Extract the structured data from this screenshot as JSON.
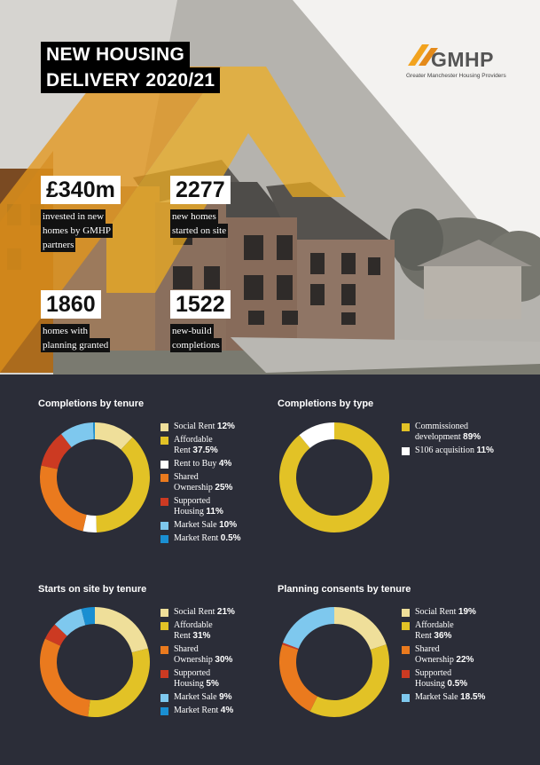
{
  "header": {
    "title_line1": "NEW HOUSING",
    "title_line2": "DELIVERY 2020/21",
    "logo_text": "GMHP",
    "logo_subtitle": "Greater Manchester Housing Providers"
  },
  "stats": [
    {
      "value": "£340m",
      "desc": [
        "invested in new",
        "homes by GMHP",
        "partners"
      ]
    },
    {
      "value": "2277",
      "desc": [
        "new homes",
        "started on site"
      ]
    },
    {
      "value": "1860",
      "desc": [
        "homes with",
        "planning granted"
      ]
    },
    {
      "value": "1522",
      "desc": [
        "new-build",
        "completions"
      ]
    }
  ],
  "colors": {
    "social_rent": "#efdf9a",
    "affordable_rent": "#e2c226",
    "rent_to_buy": "#ffffff",
    "shared_ownership": "#ea7a1e",
    "supported_housing": "#cc3a22",
    "market_sale": "#7ec8ee",
    "market_rent": "#1a8fd2",
    "commissioned": "#e2c226",
    "s106": "#ffffff"
  },
  "chart_data": [
    {
      "type": "pie",
      "title": "Completions by tenure",
      "slices": [
        {
          "label_lines": [
            "Social Rent"
          ],
          "value": 12,
          "display": "12%",
          "color_key": "social_rent"
        },
        {
          "label_lines": [
            "Affordable",
            "Rent"
          ],
          "value": 37.5,
          "display": "37.5%",
          "color_key": "affordable_rent"
        },
        {
          "label_lines": [
            "Rent to Buy"
          ],
          "value": 4,
          "display": "4%",
          "color_key": "rent_to_buy"
        },
        {
          "label_lines": [
            "Shared",
            "Ownership"
          ],
          "value": 25,
          "display": "25%",
          "color_key": "shared_ownership"
        },
        {
          "label_lines": [
            "Supported",
            "Housing"
          ],
          "value": 11,
          "display": "11%",
          "color_key": "supported_housing"
        },
        {
          "label_lines": [
            "Market Sale"
          ],
          "value": 10,
          "display": "10%",
          "color_key": "market_sale"
        },
        {
          "label_lines": [
            "Market Rent"
          ],
          "value": 0.5,
          "display": "0.5%",
          "color_key": "market_rent"
        }
      ]
    },
    {
      "type": "pie",
      "title": "Completions by type",
      "slices": [
        {
          "label_lines": [
            "Commissioned",
            "development"
          ],
          "value": 89,
          "display": "89%",
          "color_key": "commissioned"
        },
        {
          "label_lines": [
            "S106 acquisition"
          ],
          "value": 11,
          "display": "11%",
          "color_key": "s106"
        }
      ]
    },
    {
      "type": "pie",
      "title": "Starts on site by tenure",
      "slices": [
        {
          "label_lines": [
            "Social Rent"
          ],
          "value": 21,
          "display": "21%",
          "color_key": "social_rent"
        },
        {
          "label_lines": [
            "Affordable",
            "Rent"
          ],
          "value": 31,
          "display": "31%",
          "color_key": "affordable_rent"
        },
        {
          "label_lines": [
            "Shared",
            "Ownership"
          ],
          "value": 30,
          "display": "30%",
          "color_key": "shared_ownership"
        },
        {
          "label_lines": [
            "Supported",
            "Housing"
          ],
          "value": 5,
          "display": "5%",
          "color_key": "supported_housing"
        },
        {
          "label_lines": [
            "Market Sale"
          ],
          "value": 9,
          "display": "9%",
          "color_key": "market_sale"
        },
        {
          "label_lines": [
            "Market Rent"
          ],
          "value": 4,
          "display": "4%",
          "color_key": "market_rent"
        }
      ]
    },
    {
      "type": "pie",
      "title": "Planning consents by tenure",
      "slices": [
        {
          "label_lines": [
            "Social Rent"
          ],
          "value": 19,
          "display": "19%",
          "color_key": "social_rent"
        },
        {
          "label_lines": [
            "Affordable",
            "Rent"
          ],
          "value": 36,
          "display": "36%",
          "color_key": "affordable_rent"
        },
        {
          "label_lines": [
            "Shared",
            "Ownership"
          ],
          "value": 22,
          "display": "22%",
          "color_key": "shared_ownership"
        },
        {
          "label_lines": [
            "Supported",
            "Housing"
          ],
          "value": 0.5,
          "display": "0.5%",
          "color_key": "supported_housing"
        },
        {
          "label_lines": [
            "Market Sale"
          ],
          "value": 18.5,
          "display": "18.5%",
          "color_key": "market_sale"
        }
      ]
    }
  ]
}
